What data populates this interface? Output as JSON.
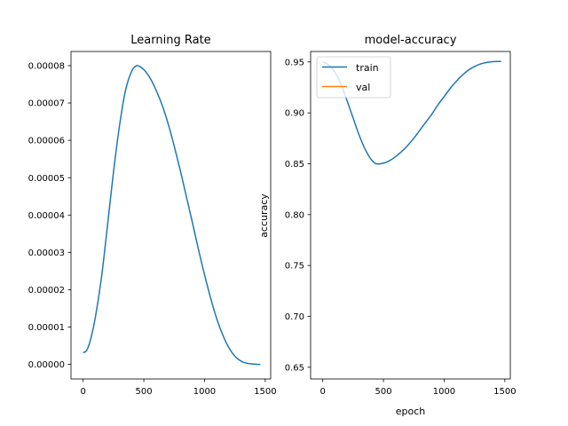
{
  "chart_data": [
    {
      "type": "line",
      "title": "Learning Rate",
      "xlabel": "",
      "ylabel": "",
      "xlim": [
        -100,
        1545
      ],
      "ylim": [
        -3.9e-06,
        8.38e-05
      ],
      "x_ticks": [
        0,
        500,
        1000,
        1500
      ],
      "x_tick_labels": [
        "0",
        "500",
        "1000",
        "1500"
      ],
      "y_ticks": [
        0,
        1e-05,
        2e-05,
        3e-05,
        4e-05,
        5e-05,
        6e-05,
        7e-05,
        8e-05
      ],
      "y_tick_labels": [
        "0.00000",
        "0.00001",
        "0.00002",
        "0.00003",
        "0.00004",
        "0.00005",
        "0.00006",
        "0.00007",
        "0.00008"
      ],
      "grid": false,
      "series": [
        {
          "color": "#1f77b4",
          "x": [
            0,
            30,
            60,
            100,
            150,
            200,
            250,
            300,
            350,
            400,
            440,
            480,
            520,
            560,
            600,
            650,
            700,
            750,
            800,
            850,
            900,
            950,
            1000,
            1050,
            1100,
            1150,
            1200,
            1250,
            1300,
            1350,
            1400,
            1440,
            1460
          ],
          "y": [
            3.1e-06,
            3.8e-06,
            6.5e-06,
            1.25e-05,
            2.3e-05,
            3.7e-05,
            5.15e-05,
            6.4e-05,
            7.35e-05,
            7.85e-05,
            8e-05,
            7.95e-05,
            7.82e-05,
            7.62e-05,
            7.35e-05,
            6.95e-05,
            6.45e-05,
            5.85e-05,
            5.2e-05,
            4.5e-05,
            3.8e-05,
            3.08e-05,
            2.4e-05,
            1.78e-05,
            1.23e-05,
            7.9e-06,
            4.5e-06,
            2.2e-06,
            9e-07,
            3e-07,
            1e-07,
            0.0,
            0.0
          ]
        }
      ]
    },
    {
      "type": "line",
      "title": "model-accuracy",
      "xlabel": "epoch",
      "ylabel": "accuracy",
      "xlim": [
        -100,
        1545
      ],
      "ylim": [
        0.6385,
        0.9603
      ],
      "x_ticks": [
        0,
        500,
        1000,
        1500
      ],
      "x_tick_labels": [
        "0",
        "500",
        "1000",
        "1500"
      ],
      "y_ticks": [
        0.65,
        0.7,
        0.75,
        0.8,
        0.85,
        0.9,
        0.95
      ],
      "y_tick_labels": [
        "0.65",
        "0.70",
        "0.75",
        "0.80",
        "0.85",
        "0.90",
        "0.95"
      ],
      "grid": false,
      "legend": {
        "placement": "upper-left"
      },
      "series": [
        {
          "name": "train",
          "color": "#1f77b4",
          "x": [
            0,
            50,
            100,
            150,
            200,
            250,
            300,
            350,
            400,
            440,
            500,
            550,
            600,
            650,
            700,
            750,
            800,
            850,
            900,
            950,
            1000,
            1050,
            1100,
            1150,
            1200,
            1250,
            1300,
            1350,
            1400,
            1450,
            1470
          ],
          "y": [
            0.95,
            0.947,
            0.94,
            0.928,
            0.912,
            0.895,
            0.878,
            0.864,
            0.854,
            0.85,
            0.8505,
            0.853,
            0.857,
            0.862,
            0.868,
            0.875,
            0.883,
            0.891,
            0.899,
            0.908,
            0.916,
            0.924,
            0.931,
            0.937,
            0.942,
            0.9455,
            0.948,
            0.9495,
            0.9503,
            0.9505,
            0.9505
          ]
        },
        {
          "name": "val",
          "color": "#ff7f0e",
          "x": [],
          "y": []
        }
      ]
    }
  ]
}
